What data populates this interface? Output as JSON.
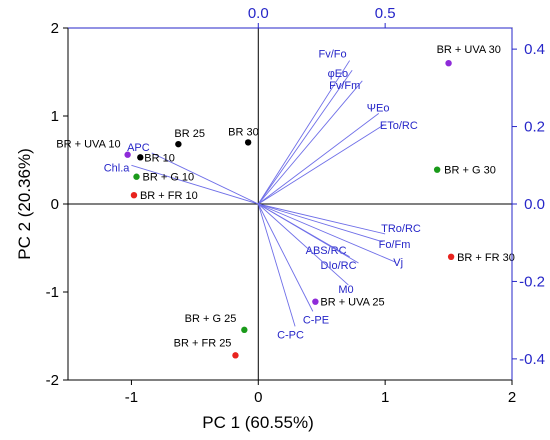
{
  "chart_data": {
    "type": "scatter",
    "subtype": "pca-biplot",
    "title": "",
    "xlabel": "PC 1 (60.55%)",
    "ylabel": "PC 2 (20.36%)",
    "xlim": [
      -1.5,
      2
    ],
    "ylim": [
      -2,
      2
    ],
    "xticks": [
      -1,
      0,
      1,
      2
    ],
    "xtick_labels": [
      "-1",
      "0",
      "1",
      "2"
    ],
    "yticks": [
      -2,
      -1,
      0,
      1,
      2
    ],
    "ytick_labels": [
      "-2",
      "-1",
      "0",
      "1",
      "2"
    ],
    "top_axis": {
      "ticks": [
        0.0,
        0.5
      ],
      "tick_labels": [
        "0.0",
        "0.5"
      ],
      "color": "#2626c8"
    },
    "right_axis": {
      "ticks": [
        -0.4,
        -0.2,
        0.0,
        0.2,
        0.4
      ],
      "tick_labels": [
        "-0.4",
        "-0.2",
        "0.0",
        "0.2",
        "0.4"
      ],
      "color": "#2626c8"
    },
    "grid": false,
    "colors": {
      "axes": "#000000",
      "secondary_axes": "#2626c8",
      "loading_vectors": "#6f6fe8",
      "loading_text": "#2626c8",
      "black": "#000000",
      "green": "#1a9a1a",
      "red": "#e8231e",
      "purple": "#8e2bd9"
    },
    "scores": [
      {
        "label": "BR + UVA 30",
        "x": 1.5,
        "y": 1.6,
        "color": "purple"
      },
      {
        "label": "BR + G 30",
        "x": 1.41,
        "y": 0.39,
        "color": "green"
      },
      {
        "label": "BR + FR 30",
        "x": 1.52,
        "y": -0.6,
        "color": "red"
      },
      {
        "label": "BR 25",
        "x": -0.63,
        "y": 0.68,
        "color": "black"
      },
      {
        "label": "BR 30",
        "x": -0.08,
        "y": 0.7,
        "color": "black"
      },
      {
        "label": "BR 10",
        "x": -0.93,
        "y": 0.53,
        "color": "black"
      },
      {
        "label": "BR + UVA 10",
        "x": -1.03,
        "y": 0.56,
        "color": "purple"
      },
      {
        "label": "BR + G 10",
        "x": -0.96,
        "y": 0.31,
        "color": "green"
      },
      {
        "label": "BR + FR 10",
        "x": -0.98,
        "y": 0.1,
        "color": "red"
      },
      {
        "label": "BR + UVA 25",
        "x": 0.45,
        "y": -1.11,
        "color": "purple"
      },
      {
        "label": "BR + G 25",
        "x": -0.11,
        "y": -1.43,
        "color": "green"
      },
      {
        "label": "BR + FR 25",
        "x": -0.18,
        "y": -1.72,
        "color": "red"
      }
    ],
    "loadings": [
      {
        "label": "Fv/Fo",
        "x": 0.72,
        "y": 1.63
      },
      {
        "label": "φEo",
        "x": 0.74,
        "y": 1.52
      },
      {
        "label": "Fv/Fm",
        "x": 0.82,
        "y": 1.4
      },
      {
        "label": "ΨEo",
        "x": 0.95,
        "y": 1.03
      },
      {
        "label": "ETo/RC",
        "x": 0.99,
        "y": 0.9
      },
      {
        "label": "APC",
        "x": -0.84,
        "y": 0.58
      },
      {
        "label": "Chl.a",
        "x": -1.0,
        "y": 0.44
      },
      {
        "label": "TRo/RC",
        "x": 1.0,
        "y": -0.34
      },
      {
        "label": "Fo/Fm",
        "x": 0.98,
        "y": -0.43
      },
      {
        "label": "ABS/RC",
        "x": 0.72,
        "y": -0.6
      },
      {
        "label": "DIo/RC",
        "x": 0.79,
        "y": -0.67
      },
      {
        "label": "Vj",
        "x": 1.08,
        "y": -0.66
      },
      {
        "label": "M0",
        "x": 0.71,
        "y": -0.92
      },
      {
        "label": "C-PE",
        "x": 0.43,
        "y": -1.22
      },
      {
        "label": "C-PC",
        "x": 0.29,
        "y": -1.39
      }
    ]
  }
}
